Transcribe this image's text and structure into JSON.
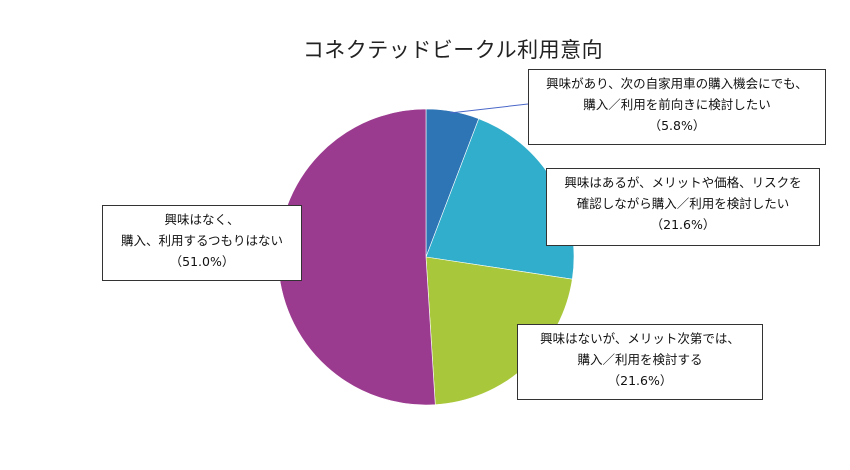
{
  "chart_data": {
    "type": "pie",
    "title": "コネクテッドビークル利用意向",
    "slices": [
      {
        "label_lines": [
          "興味があり、次の自家用車の購入機会にでも、",
          "購入／利用を前向きに検討したい",
          "（5.8%）"
        ],
        "value": 5.8,
        "color": "#2E75B6"
      },
      {
        "label_lines": [
          "興味はあるが、メリットや価格、リスクを",
          "確認しながら購入／利用を検討したい",
          "（21.6%）"
        ],
        "value": 21.6,
        "color": "#31AECB"
      },
      {
        "label_lines": [
          "興味はないが、メリット次第では、",
          "購入／利用を検討する",
          "（21.6%）"
        ],
        "value": 21.6,
        "color": "#A9C73A"
      },
      {
        "label_lines": [
          "興味はなく、",
          "購入、利用するつもりはない",
          "（51.0%）"
        ],
        "value": 51.0,
        "color": "#9B3B8F"
      }
    ]
  }
}
